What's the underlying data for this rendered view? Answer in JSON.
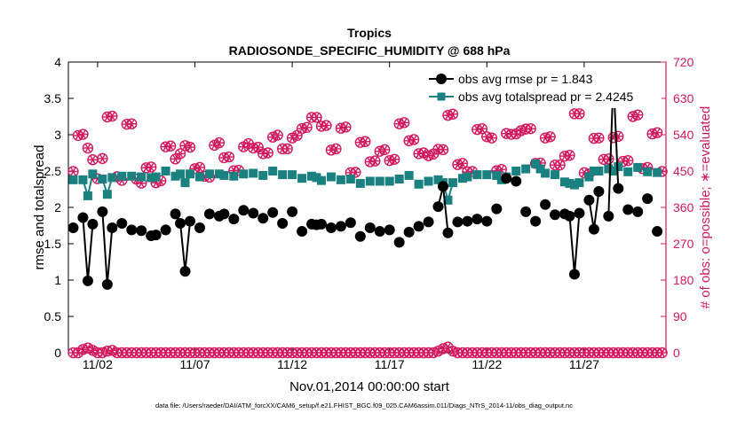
{
  "chart_data": {
    "type": "line",
    "title_line1": "Tropics",
    "title_line2": "RADIOSONDE_SPECIFIC_HUMIDITY @ 688 hPa",
    "xlabel": "Nov.01,2014 00:00:00 start",
    "ylabel_left": "rmse and totalspread",
    "ylabel_right": "# of obs: o=possible; ∗=evaluated",
    "footer": "data file: /Users/raeder/DAI/ATM_forcXX/CAM6_setup/f.e21.FHIST_BGC.f09_025.CAM6assim.011/Diags_NTrS_2014-11/obs_diag_output.nc",
    "xlim": [
      0.5,
      31.2
    ],
    "ylim_left": [
      0,
      4
    ],
    "ylim_right": [
      0,
      720
    ],
    "x_ticks": [
      {
        "x": 2,
        "label": "11/02"
      },
      {
        "x": 7,
        "label": "11/07"
      },
      {
        "x": 12,
        "label": "11/12"
      },
      {
        "x": 17,
        "label": "11/17"
      },
      {
        "x": 22,
        "label": "11/22"
      },
      {
        "x": 27,
        "label": "11/27"
      }
    ],
    "y_ticks_left": [
      "0",
      "0.5",
      "1",
      "1.5",
      "2",
      "2.5",
      "3",
      "3.5",
      "4"
    ],
    "y_ticks_right": [
      "0",
      "90",
      "180",
      "270",
      "360",
      "450",
      "540",
      "630",
      "720"
    ],
    "legend": [
      "obs avg rmse pr = 1.843",
      "obs avg totalspread pr = 2.4245"
    ],
    "colors": {
      "rmse": "#000000",
      "spread": "#1a8080",
      "obs": "#d3195f",
      "axis": "#000000"
    },
    "x": [
      0.75,
      1.0,
      1.25,
      1.5,
      1.75,
      2.0,
      2.25,
      2.5,
      2.75,
      3.0,
      3.25,
      3.5,
      3.75,
      4.0,
      4.25,
      4.5,
      4.75,
      5.0,
      5.25,
      5.5,
      5.75,
      6.0,
      6.25,
      6.5,
      6.75,
      7.0,
      7.25,
      7.5,
      7.75,
      8.0,
      8.25,
      8.5,
      8.75,
      9.0,
      9.25,
      9.5,
      9.75,
      10.0,
      10.25,
      10.5,
      10.75,
      11.0,
      11.25,
      11.5,
      11.75,
      12.0,
      12.25,
      12.5,
      12.75,
      13.0,
      13.25,
      13.5,
      13.75,
      14.0,
      14.25,
      14.5,
      14.75,
      15.0,
      15.25,
      15.5,
      15.75,
      16.0,
      16.25,
      16.5,
      16.75,
      17.0,
      17.25,
      17.5,
      17.75,
      18.0,
      18.25,
      18.5,
      18.75,
      19.0,
      19.25,
      19.5,
      19.75,
      20.0,
      20.25,
      20.5,
      20.75,
      21.0,
      21.25,
      21.5,
      21.75,
      22.0,
      22.25,
      22.5,
      22.75,
      23.0,
      23.25,
      23.5,
      23.75,
      24.0,
      24.25,
      24.5,
      24.75,
      25.0,
      25.25,
      25.5,
      25.75,
      26.0,
      26.25,
      26.5,
      26.75,
      27.0,
      27.25,
      27.5,
      27.75,
      28.0,
      28.25,
      28.5,
      28.75,
      29.0,
      29.25,
      29.5,
      29.75,
      30.0,
      30.25,
      30.5,
      30.75,
      31.0
    ],
    "series": [
      {
        "name": "obs avg rmse",
        "marker": "circle",
        "values": [
          1.72,
          null,
          1.86,
          0.99,
          1.77,
          null,
          1.94,
          0.94,
          1.72,
          null,
          1.78,
          null,
          1.69,
          null,
          1.68,
          null,
          1.61,
          1.62,
          null,
          1.69,
          null,
          1.91,
          1.78,
          1.12,
          1.81,
          null,
          1.72,
          null,
          1.91,
          null,
          1.88,
          1.91,
          null,
          1.84,
          null,
          1.96,
          null,
          1.92,
          null,
          1.85,
          null,
          1.93,
          null,
          1.78,
          null,
          1.94,
          null,
          1.67,
          null,
          1.77,
          1.76,
          1.77,
          null,
          1.72,
          null,
          1.74,
          null,
          1.79,
          null,
          1.6,
          null,
          1.72,
          null,
          1.67,
          null,
          1.69,
          null,
          1.52,
          null,
          1.66,
          null,
          1.74,
          null,
          1.8,
          null,
          2.01,
          2.29,
          1.65,
          null,
          1.8,
          null,
          1.81,
          null,
          1.84,
          null,
          1.81,
          null,
          1.98,
          null,
          2.4,
          null,
          2.36,
          null,
          1.94,
          null,
          1.81,
          null,
          2.04,
          null,
          1.9,
          null,
          1.91,
          1.88,
          1.08,
          1.92,
          null,
          2.1,
          1.7,
          2.22,
          null,
          1.88,
          3.79,
          2.26,
          null,
          1.97,
          null,
          1.94,
          null,
          2.12,
          null,
          1.67,
          null
        ]
      },
      {
        "name": "obs avg totalspread",
        "marker": "square",
        "values": [
          2.38,
          null,
          2.38,
          2.16,
          2.46,
          null,
          2.39,
          2.18,
          2.41,
          null,
          2.43,
          null,
          2.43,
          null,
          2.42,
          null,
          2.41,
          2.42,
          null,
          2.5,
          null,
          2.43,
          2.46,
          2.34,
          2.46,
          null,
          2.42,
          null,
          2.46,
          null,
          2.46,
          2.44,
          null,
          2.43,
          null,
          2.46,
          null,
          2.47,
          null,
          2.44,
          null,
          2.5,
          null,
          2.45,
          null,
          2.45,
          null,
          2.4,
          null,
          2.43,
          2.41,
          2.37,
          null,
          2.42,
          null,
          2.38,
          null,
          2.39,
          null,
          2.33,
          null,
          2.36,
          null,
          2.36,
          null,
          2.36,
          null,
          2.39,
          null,
          2.44,
          null,
          2.32,
          null,
          2.36,
          null,
          2.38,
          2.34,
          2.1,
          2.34,
          null,
          2.4,
          2.42,
          null,
          2.45,
          null,
          2.45,
          null,
          2.44,
          2.38,
          2.42,
          null,
          2.5,
          null,
          2.53,
          null,
          2.6,
          2.53,
          2.47,
          null,
          2.45,
          null,
          2.35,
          2.33,
          2.31,
          2.34,
          null,
          2.42,
          2.5,
          2.5,
          null,
          2.53,
          2.5,
          2.56,
          null,
          2.49,
          null,
          2.55,
          null,
          2.49,
          null,
          2.48,
          null
        ]
      },
      {
        "name": "# obs possible",
        "marker": "o",
        "axis": "right",
        "values": [
          449,
          538,
          541,
          507,
          478,
          431,
          481,
          584,
          586,
          436,
          427,
          566,
          567,
          430,
          420,
          458,
          460,
          421,
          426,
          510,
          512,
          480,
          493,
          513,
          509,
          456,
          459,
          437,
          435,
          514,
          520,
          483,
          485,
          451,
          452,
          510,
          518,
          507,
          509,
          493,
          495,
          534,
          539,
          505,
          505,
          532,
          538,
          555,
          558,
          583,
          583,
          561,
          563,
          502,
          505,
          556,
          559,
          446,
          447,
          521,
          523,
          473,
          475,
          499,
          503,
          476,
          479,
          567,
          570,
          525,
          528,
          493,
          495,
          488,
          492,
          504,
          503,
          588,
          591,
          466,
          469,
          448,
          449,
          553,
          555,
          535,
          532,
          451,
          454,
          543,
          541,
          542,
          550,
          554,
          555,
          469,
          470,
          532,
          535,
          465,
          465,
          487,
          489,
          592,
          592,
          446,
          443,
          531,
          532,
          479,
          480,
          533,
          536,
          474,
          476,
          585,
          589,
          456,
          459,
          542,
          545,
          449
        ]
      },
      {
        "name": "# obs evaluated",
        "marker": "asterisk",
        "axis": "right",
        "values": [
          449,
          538,
          541,
          507,
          478,
          431,
          481,
          584,
          586,
          436,
          427,
          566,
          567,
          430,
          420,
          458,
          460,
          421,
          426,
          510,
          512,
          480,
          493,
          513,
          509,
          456,
          459,
          437,
          435,
          514,
          520,
          483,
          485,
          451,
          452,
          510,
          518,
          507,
          509,
          493,
          495,
          534,
          539,
          505,
          505,
          532,
          538,
          555,
          558,
          583,
          583,
          561,
          563,
          502,
          505,
          556,
          559,
          446,
          447,
          521,
          523,
          473,
          475,
          499,
          503,
          476,
          479,
          567,
          570,
          525,
          528,
          493,
          495,
          488,
          492,
          504,
          503,
          588,
          591,
          466,
          469,
          448,
          449,
          553,
          555,
          535,
          532,
          451,
          454,
          543,
          541,
          542,
          550,
          554,
          555,
          469,
          470,
          532,
          535,
          465,
          465,
          487,
          489,
          592,
          592,
          446,
          443,
          531,
          532,
          479,
          480,
          533,
          536,
          474,
          476,
          585,
          589,
          456,
          459,
          542,
          545,
          449
        ]
      },
      {
        "name": "# obs possible (rejected)",
        "marker": "o",
        "axis": "right",
        "values": [
          0,
          0,
          8,
          12,
          6,
          0,
          0,
          4,
          6,
          0,
          0,
          0,
          0,
          0,
          0,
          0,
          0,
          0,
          0,
          0,
          0,
          0,
          0,
          0,
          0,
          0,
          0,
          0,
          0,
          0,
          0,
          0,
          0,
          0,
          0,
          0,
          0,
          0,
          0,
          0,
          0,
          0,
          0,
          0,
          0,
          0,
          0,
          0,
          0,
          0,
          0,
          0,
          0,
          0,
          0,
          0,
          0,
          0,
          0,
          0,
          0,
          0,
          0,
          0,
          0,
          0,
          0,
          0,
          0,
          0,
          0,
          0,
          0,
          0,
          0,
          4,
          10,
          14,
          4,
          0,
          0,
          0,
          0,
          0,
          0,
          0,
          0,
          0,
          0,
          0,
          0,
          0,
          0,
          0,
          0,
          0,
          0,
          0,
          0,
          0,
          0,
          0,
          0,
          0,
          0,
          0,
          0,
          0,
          0,
          0,
          0,
          0,
          0,
          0,
          0,
          0,
          0,
          0,
          0,
          0,
          0,
          0
        ]
      }
    ]
  }
}
